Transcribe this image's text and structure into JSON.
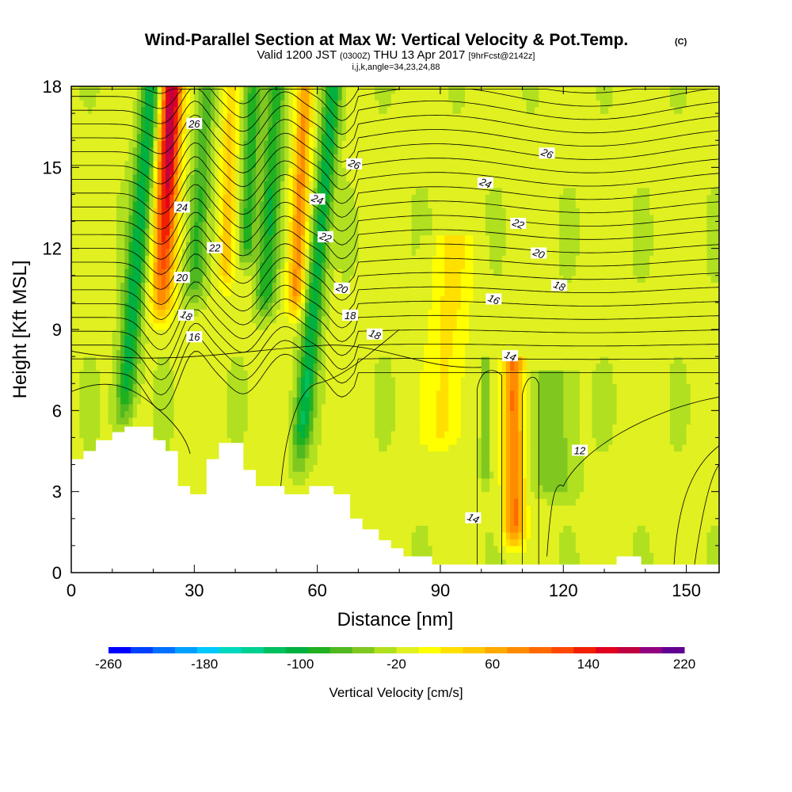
{
  "chart_data": {
    "type": "heatmap",
    "title": "Wind-Parallel Section at Max W: Vertical Velocity & Pot.Temp.",
    "title_mark": "(C)",
    "subtitle_pre": "Valid 1200 JST",
    "subtitle_utc": "(0300Z)",
    "subtitle_mid": "THU 13 Apr 2017",
    "subtitle_fcst": "[9hrFcst@2142z]",
    "subtitle2": "i,j,k,angle=34,23,24,88",
    "xlabel": "Distance [nm]",
    "ylabel": "Height [Kft MSL]",
    "xlim": [
      0,
      158
    ],
    "ylim": [
      0,
      18
    ],
    "xticks": [
      0,
      30,
      60,
      90,
      120,
      150
    ],
    "yticks": [
      0,
      3,
      6,
      9,
      12,
      15,
      18
    ],
    "grid": false,
    "colorbar": {
      "label": "Vertical Velocity [cm/s]",
      "min": -260,
      "max": 220,
      "step": 20,
      "tick_labels": [
        "-260",
        "-180",
        "-100",
        "-20",
        "60",
        "140",
        "220"
      ],
      "colors": [
        "#0000ff",
        "#0040ff",
        "#0070ff",
        "#00a0ff",
        "#00c8ff",
        "#00d8c0",
        "#00d090",
        "#00c060",
        "#00b040",
        "#20b020",
        "#50b820",
        "#80c820",
        "#b0e020",
        "#e0f020",
        "#ffff00",
        "#ffe000",
        "#ffc800",
        "#ffaa00",
        "#ff8c00",
        "#ff6a00",
        "#ff4800",
        "#f02000",
        "#e00020",
        "#c00040",
        "#900080",
        "#600090"
      ]
    },
    "contours_theta_C": [
      {
        "label": "12",
        "label_pos": [
          124,
          4.5
        ]
      },
      {
        "label": "14",
        "label_pos": [
          98,
          2.0
        ]
      },
      {
        "label": "14",
        "label_pos": [
          107,
          8.0
        ]
      },
      {
        "label": "16",
        "label_pos": [
          30,
          8.7
        ]
      },
      {
        "label": "16",
        "label_pos": [
          103,
          10.1
        ]
      },
      {
        "label": "18",
        "label_pos": [
          28,
          9.5
        ]
      },
      {
        "label": "18",
        "label_pos": [
          68,
          9.5
        ]
      },
      {
        "label": "18",
        "label_pos": [
          74,
          8.8
        ]
      },
      {
        "label": "18",
        "label_pos": [
          119,
          10.6
        ]
      },
      {
        "label": "20",
        "label_pos": [
          27,
          10.9
        ]
      },
      {
        "label": "20",
        "label_pos": [
          66,
          10.5
        ]
      },
      {
        "label": "20",
        "label_pos": [
          114,
          11.8
        ]
      },
      {
        "label": "22",
        "label_pos": [
          35,
          12.0
        ]
      },
      {
        "label": "22",
        "label_pos": [
          62,
          12.4
        ]
      },
      {
        "label": "22",
        "label_pos": [
          109,
          12.9
        ]
      },
      {
        "label": "24",
        "label_pos": [
          27,
          13.5
        ]
      },
      {
        "label": "24",
        "label_pos": [
          60,
          13.8
        ]
      },
      {
        "label": "24",
        "label_pos": [
          101,
          14.4
        ]
      },
      {
        "label": "26",
        "label_pos": [
          30,
          16.6
        ]
      },
      {
        "label": "26",
        "label_pos": [
          69,
          15.1
        ]
      },
      {
        "label": "26",
        "label_pos": [
          116,
          15.5
        ]
      }
    ],
    "terrain_kft": [
      {
        "x": 0,
        "y": 4.2
      },
      {
        "x": 3,
        "y": 4.5
      },
      {
        "x": 6,
        "y": 4.9
      },
      {
        "x": 10,
        "y": 5.2
      },
      {
        "x": 13,
        "y": 5.4
      },
      {
        "x": 20,
        "y": 4.9
      },
      {
        "x": 23,
        "y": 4.5
      },
      {
        "x": 26,
        "y": 3.2
      },
      {
        "x": 29,
        "y": 2.9
      },
      {
        "x": 33,
        "y": 4.2
      },
      {
        "x": 36,
        "y": 4.8
      },
      {
        "x": 42,
        "y": 3.8
      },
      {
        "x": 45,
        "y": 3.2
      },
      {
        "x": 52,
        "y": 2.9
      },
      {
        "x": 58,
        "y": 3.2
      },
      {
        "x": 64,
        "y": 2.9
      },
      {
        "x": 68,
        "y": 2.0
      },
      {
        "x": 71,
        "y": 1.6
      },
      {
        "x": 75,
        "y": 1.2
      },
      {
        "x": 78,
        "y": 0.9
      },
      {
        "x": 81,
        "y": 0.6
      },
      {
        "x": 88,
        "y": 0.3
      },
      {
        "x": 126,
        "y": 0.3
      },
      {
        "x": 133,
        "y": 0.6
      },
      {
        "x": 139,
        "y": 0.3
      },
      {
        "x": 158,
        "y": 0.3
      }
    ],
    "w_features_cm_s": [
      {
        "x": 24.5,
        "y_top": 18,
        "y_bottom": 8.6,
        "slant": 0.3,
        "peak": 220,
        "width": 2.6
      },
      {
        "x": 19.5,
        "y_top": 18,
        "y_bottom": 4.8,
        "slant": 0.55,
        "peak": -100,
        "width": 2.4
      },
      {
        "x": 33,
        "y_top": 18,
        "y_bottom": 9.5,
        "slant": 0.4,
        "peak": -60,
        "width": 2.2
      },
      {
        "x": 39,
        "y_top": 18,
        "y_bottom": 10.0,
        "slant": 0.2,
        "peak": 60,
        "width": 1.8
      },
      {
        "x": 44.5,
        "y_top": 18,
        "y_bottom": 11.0,
        "slant": 0.3,
        "peak": -80,
        "width": 1.8
      },
      {
        "x": 50,
        "y_top": 18,
        "y_bottom": 9.0,
        "slant": 0.35,
        "peak": -80,
        "width": 2.4
      },
      {
        "x": 57,
        "y_top": 18,
        "y_bottom": 9.0,
        "slant": 0.3,
        "peak": 100,
        "width": 2.0
      },
      {
        "x": 64,
        "y_top": 18,
        "y_bottom": 3.2,
        "slant": 0.6,
        "peak": -100,
        "width": 2.2
      },
      {
        "x": 108,
        "y_top": 7.6,
        "y_bottom": 0.6,
        "slant": 0.0,
        "peak": 120,
        "width": 2.4
      },
      {
        "x": 118,
        "y_top": 7.0,
        "y_bottom": 2.5,
        "slant": 0.0,
        "peak": -40,
        "width": 5.0
      },
      {
        "x": 101,
        "y_top": 7.6,
        "y_bottom": 3.0,
        "slant": 0.0,
        "peak": -40,
        "width": 1.2
      },
      {
        "x": 93,
        "y_top": 12.0,
        "y_bottom": 4.0,
        "slant": 0.3,
        "peak": 40,
        "width": 5.0
      }
    ]
  }
}
